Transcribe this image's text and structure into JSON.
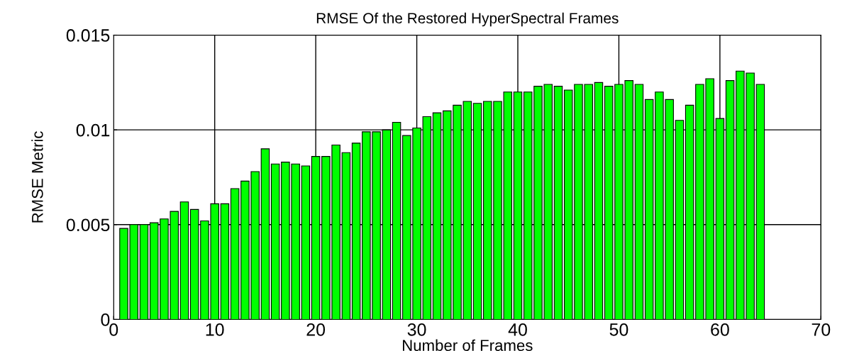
{
  "chart_data": {
    "type": "bar",
    "title": "RMSE Of the Restored HyperSpectral Frames",
    "xlabel": "Number of Frames",
    "ylabel": "RMSE Metric",
    "x": [
      1,
      2,
      3,
      4,
      5,
      6,
      7,
      8,
      9,
      10,
      11,
      12,
      13,
      14,
      15,
      16,
      17,
      18,
      19,
      20,
      21,
      22,
      23,
      24,
      25,
      26,
      27,
      28,
      29,
      30,
      31,
      32,
      33,
      34,
      35,
      36,
      37,
      38,
      39,
      40,
      41,
      42,
      43,
      44,
      45,
      46,
      47,
      48,
      49,
      50,
      51,
      52,
      53,
      54,
      55,
      56,
      57,
      58,
      59,
      60,
      61,
      62,
      63,
      64
    ],
    "values": [
      0.0048,
      0.005,
      0.005,
      0.0051,
      0.0053,
      0.0057,
      0.0062,
      0.0058,
      0.0052,
      0.0061,
      0.0061,
      0.0069,
      0.0073,
      0.0078,
      0.009,
      0.0082,
      0.0083,
      0.0082,
      0.0081,
      0.0086,
      0.0086,
      0.0092,
      0.0088,
      0.0093,
      0.0099,
      0.0099,
      0.01,
      0.0104,
      0.0097,
      0.0101,
      0.0107,
      0.0109,
      0.011,
      0.0113,
      0.0115,
      0.0114,
      0.0115,
      0.0115,
      0.012,
      0.012,
      0.012,
      0.0123,
      0.0124,
      0.0123,
      0.0121,
      0.0124,
      0.0124,
      0.0125,
      0.0123,
      0.0124,
      0.0126,
      0.0124,
      0.0116,
      0.012,
      0.0116,
      0.0105,
      0.0113,
      0.0124,
      0.0127,
      0.0106,
      0.0126,
      0.0131,
      0.013,
      0.0124
    ],
    "color": "#00ff00",
    "xlim": [
      0,
      70
    ],
    "xticks": [
      0,
      10,
      20,
      30,
      40,
      50,
      60,
      70
    ],
    "ylim": [
      0,
      0.015
    ],
    "yticks": [
      0,
      0.005,
      0.01,
      0.015
    ],
    "grid": true,
    "legend": false
  }
}
